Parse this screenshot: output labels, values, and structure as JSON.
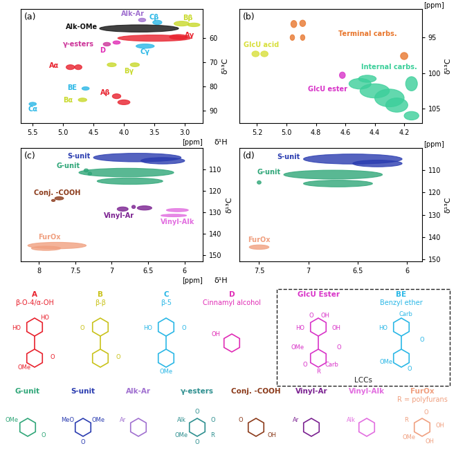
{
  "chart_data": [
    {
      "type": "contour",
      "title": "(a)",
      "xlim": [
        5.7,
        2.7
      ],
      "ylim": [
        95,
        48
      ],
      "xticks": [
        5.5,
        5.0,
        4.5,
        4.0,
        3.5,
        3.0
      ],
      "yticks": [
        60,
        70,
        80,
        90
      ],
      "x_label": "δ¹H",
      "x_unit": "[ppm]",
      "y_label": "δ¹³C",
      "series": [
        {
          "name": "Alk-OMe",
          "color": "#111111",
          "peaks": [
            [
              3.75,
              56,
              1.3,
              3.0
            ]
          ],
          "label_at": [
            4.7,
            55.5
          ]
        },
        {
          "name": "Aγ",
          "color": "#e8212d",
          "peaks": [
            [
              3.5,
              60,
              1.2,
              2.6
            ],
            [
              3.1,
              59.5,
              0.3,
              2.0
            ]
          ],
          "label_at": [
            2.92,
            58.8
          ]
        },
        {
          "name": "Bβ",
          "color": "#c8d92a",
          "peaks": [
            [
              3.05,
              54,
              0.25,
              2.0
            ],
            [
              2.85,
              54.5,
              0.2,
              1.5
            ]
          ],
          "label_at": [
            2.95,
            51.8
          ]
        },
        {
          "name": "Cβ",
          "color": "#2ab7e6",
          "peaks": [
            [
              3.45,
              53.5,
              0.15,
              1.8
            ]
          ],
          "label_at": [
            3.5,
            51.5
          ]
        },
        {
          "name": "Alk-Ar",
          "color": "#a070d0",
          "peaks": [
            [
              3.7,
              52.5,
              0.12,
              1.5
            ]
          ],
          "label_at": [
            3.85,
            50
          ]
        },
        {
          "name": "Cγ",
          "color": "#2ab7e6",
          "peaks": [
            [
              3.65,
              63.3,
              0.3,
              1.8
            ]
          ],
          "label_at": [
            3.65,
            65.8
          ]
        },
        {
          "name": "γ-esters",
          "color": "#cc3399",
          "peaks": [
            [
              4.28,
              62.5,
              0.12,
              1.5
            ]
          ],
          "label_at": [
            4.75,
            62.5
          ]
        },
        {
          "name": "D",
          "color": "#e02bb5",
          "peaks": [
            [
              4.12,
              61.8,
              0.12,
              1.4
            ]
          ],
          "label_at": [
            4.35,
            65.2
          ]
        },
        {
          "name": "Aα",
          "color": "#e8212d",
          "peaks": [
            [
              4.88,
              72,
              0.14,
              2.0
            ],
            [
              4.75,
              72,
              0.12,
              2.0
            ]
          ],
          "label_at": [
            5.15,
            71.5
          ]
        },
        {
          "name": "Bγ",
          "color": "#c8d92a",
          "peaks": [
            [
              4.2,
              71,
              0.15,
              1.6
            ],
            [
              3.82,
              71,
              0.15,
              1.6
            ]
          ],
          "label_at": [
            3.92,
            73.8
          ]
        },
        {
          "name": "BE",
          "color": "#2ab7e6",
          "peaks": [
            [
              4.63,
              80.8,
              0.12,
              1.4
            ]
          ],
          "label_at": [
            4.85,
            80.5
          ]
        },
        {
          "name": "Bα",
          "color": "#c8d92a",
          "peaks": [
            [
              4.68,
              85.5,
              0.14,
              1.5
            ]
          ],
          "label_at": [
            4.92,
            85.8
          ]
        },
        {
          "name": "Aβ",
          "color": "#e8212d",
          "peaks": [
            [
              4.12,
              84,
              0.14,
              2.0
            ],
            [
              4.0,
              86.5,
              0.2,
              2.0
            ]
          ],
          "label_at": [
            4.3,
            82.6
          ]
        },
        {
          "name": "Cα",
          "color": "#2ab7e6",
          "peaks": [
            [
              5.5,
              87.2,
              0.12,
              1.4
            ]
          ],
          "label_at": [
            5.5,
            89.5
          ]
        }
      ]
    },
    {
      "type": "contour",
      "title": "(b)",
      "xlim": [
        5.32,
        4.08
      ],
      "ylim": [
        107,
        91
      ],
      "xticks": [
        5.2,
        5.0,
        4.8,
        4.6,
        4.4,
        4.2
      ],
      "yticks": [
        95,
        100,
        105
      ],
      "y_unit": "[ppm]",
      "y_label": "δ¹³C",
      "series": [
        {
          "name": "Terminal carbs.",
          "color": "#e8772e",
          "peaks": [
            [
              4.95,
              93.1,
              0.04,
              1.0
            ],
            [
              4.89,
              93.0,
              0.04,
              0.9
            ],
            [
              4.96,
              95,
              0.03,
              0.8
            ],
            [
              4.89,
              95,
              0.03,
              0.8
            ],
            [
              4.2,
              97.6,
              0.05,
              1.0
            ]
          ],
          "label_at": [
            4.45,
            94.5
          ]
        },
        {
          "name": "GlcU acid",
          "color": "#d8df3a",
          "peaks": [
            [
              5.21,
              97.3,
              0.05,
              0.8
            ],
            [
              5.15,
              97.3,
              0.05,
              0.8
            ]
          ],
          "label_at": [
            5.17,
            96.0
          ]
        },
        {
          "name": "Internal carbs.",
          "color": "#3ccf9a",
          "peaks": [
            [
              4.5,
              101.5,
              0.15,
              1.5
            ],
            [
              4.4,
              102.5,
              0.2,
              2.0
            ],
            [
              4.3,
              103.5,
              0.2,
              2.5
            ],
            [
              4.25,
              104.5,
              0.15,
              2.0
            ],
            [
              4.15,
              101.5,
              0.08,
              2.0
            ],
            [
              4.45,
              100.8,
              0.12,
              1.0
            ],
            [
              4.15,
              106,
              0.1,
              1.2
            ]
          ],
          "label_at": [
            4.3,
            99.2
          ]
        },
        {
          "name": "GlcU ester",
          "color": "#d833c8",
          "peaks": [
            [
              4.62,
              100.3,
              0.04,
              0.9
            ]
          ],
          "label_at": [
            4.72,
            102.3
          ]
        }
      ]
    },
    {
      "type": "contour",
      "title": "(c)",
      "xlim": [
        8.25,
        5.75
      ],
      "ylim": [
        153,
        100
      ],
      "xticks": [
        8,
        7.5,
        7,
        6.5,
        6
      ],
      "yticks": [
        110,
        120,
        130,
        140,
        150
      ],
      "x_label": "δ¹H",
      "x_unit": "[ppm]",
      "y_label": "δ¹³C",
      "series": [
        {
          "name": "S-unit",
          "color": "#2a3cb0",
          "peaks": [
            [
              6.65,
              104.5,
              1.2,
              4.0
            ],
            [
              6.3,
              106,
              0.6,
              3.0
            ]
          ],
          "label_at": [
            7.45,
            104
          ]
        },
        {
          "name": "G-unit",
          "color": "#2fa678",
          "peaks": [
            [
              6.8,
              111.5,
              1.3,
              4.0
            ],
            [
              6.75,
              115.5,
              0.9,
              3.0
            ],
            [
              7.35,
              110.5,
              0.06,
              1.5
            ],
            [
              7.3,
              112,
              0.05,
              1.5
            ]
          ],
          "label_at": [
            7.6,
            108.5
          ]
        },
        {
          "name": "Conj. -COOH",
          "color": "#8b3a1a",
          "peaks": [
            [
              7.72,
              123.5,
              0.12,
              1.5
            ],
            [
              7.8,
              124.5,
              0.05,
              1.0
            ]
          ],
          "label_at": [
            7.75,
            121
          ]
        },
        {
          "name": "Vinyl-Ar",
          "color": "#7a2090",
          "peaks": [
            [
              6.85,
              128.5,
              0.15,
              2.0
            ],
            [
              6.55,
              128,
              0.2,
              2.0
            ],
            [
              6.7,
              127.5,
              0.05,
              1.5
            ]
          ],
          "label_at": [
            6.9,
            131.5
          ]
        },
        {
          "name": "Vinyl-Alk",
          "color": "#e26ee0",
          "peaks": [
            [
              6.1,
              129,
              0.3,
              1.5
            ],
            [
              6.15,
              131.5,
              0.35,
              1.2
            ]
          ],
          "label_at": [
            6.1,
            134.5
          ]
        },
        {
          "name": "FurOx",
          "color": "#f0a080",
          "peaks": [
            [
              7.75,
              145.5,
              0.8,
              3.0
            ],
            [
              7.9,
              146.8,
              0.4,
              2.0
            ]
          ],
          "label_at": [
            7.85,
            141.5
          ]
        }
      ]
    },
    {
      "type": "contour",
      "title": "(d)",
      "xlim": [
        7.7,
        5.85
      ],
      "ylim": [
        151,
        100
      ],
      "xticks": [
        7.5,
        7,
        6.5,
        6
      ],
      "yticks": [
        110,
        120,
        130,
        140,
        150
      ],
      "y_unit": "[ppm]",
      "y_label": "δ¹³C",
      "series": [
        {
          "name": "S-unit",
          "color": "#2a3cb0",
          "peaks": [
            [
              6.55,
              105,
              1.0,
              4.5
            ],
            [
              6.3,
              107,
              0.5,
              3.0
            ]
          ],
          "label_at": [
            7.2,
            104
          ]
        },
        {
          "name": "G-unit",
          "color": "#2fa678",
          "peaks": [
            [
              6.75,
              112,
              1.0,
              4.0
            ],
            [
              6.7,
              116,
              0.7,
              3.0
            ],
            [
              7.5,
              115.5,
              0.04,
              1.5
            ]
          ],
          "label_at": [
            7.4,
            111
          ]
        },
        {
          "name": "FurOx",
          "color": "#f0a080",
          "peaks": [
            [
              7.5,
              144.5,
              0.2,
              2.0
            ]
          ],
          "label_at": [
            7.5,
            141.3
          ]
        }
      ]
    }
  ],
  "structures": {
    "rows": [
      [
        {
          "name": "A",
          "subtitle": "β-O-4/α-OH",
          "color": "#e8212d",
          "texts": [
            "HO",
            "HO",
            "O",
            "OMe"
          ]
        },
        {
          "name": "B",
          "subtitle": "β-β",
          "color": "#c9c21a",
          "texts": [
            "O",
            "O"
          ]
        },
        {
          "name": "C",
          "subtitle": "β-5",
          "color": "#2ab7e6",
          "texts": [
            "HO",
            "O",
            "OMe"
          ]
        },
        {
          "name": "D",
          "subtitle": "Cinnamyl alcohol",
          "color": "#e02bb5",
          "texts": [
            "OH"
          ]
        },
        {
          "name": "GlcU Ester",
          "color": "#d833c8",
          "texts": [
            "HO",
            "O",
            "OH",
            "OH",
            "O",
            "Carb",
            "R",
            "O",
            "OMe"
          ]
        },
        {
          "name": "BE",
          "subtitle": "Benzyl ether",
          "color": "#2ab7e6",
          "texts": [
            "HO",
            "Carb",
            "O",
            "O",
            "OMe"
          ]
        }
      ],
      [
        {
          "name": "G-unit",
          "color": "#2fa678",
          "texts": [
            "OMe",
            "O"
          ]
        },
        {
          "name": "S-unit",
          "color": "#2a3cb0",
          "texts": [
            "MeO",
            "OMe",
            "O"
          ]
        },
        {
          "name": "Alk-Ar",
          "color": "#a070d0",
          "texts": [
            "Ar"
          ]
        },
        {
          "name": "γ-esters",
          "color": "#2d8f8f",
          "texts": [
            "Alk",
            "O",
            "O",
            "R",
            "O",
            "OMe"
          ]
        },
        {
          "name": "Conj. -COOH",
          "color": "#8b3a1a",
          "texts": [
            "O",
            "OH"
          ]
        },
        {
          "name": "Vinyl-Ar",
          "color": "#7a2090",
          "texts": [
            "Ar"
          ]
        },
        {
          "name": "Vinyl-Alk",
          "color": "#e26ee0",
          "texts": [
            "Alk"
          ]
        },
        {
          "name": "FurOx",
          "subtitle": "R = polyfurans",
          "color": "#f0a080",
          "texts": [
            "R",
            "O",
            "OH",
            "OH",
            "OMe"
          ]
        }
      ]
    ],
    "group": {
      "label": "LCCs",
      "members": [
        "GlcU Ester",
        "BE"
      ]
    }
  }
}
